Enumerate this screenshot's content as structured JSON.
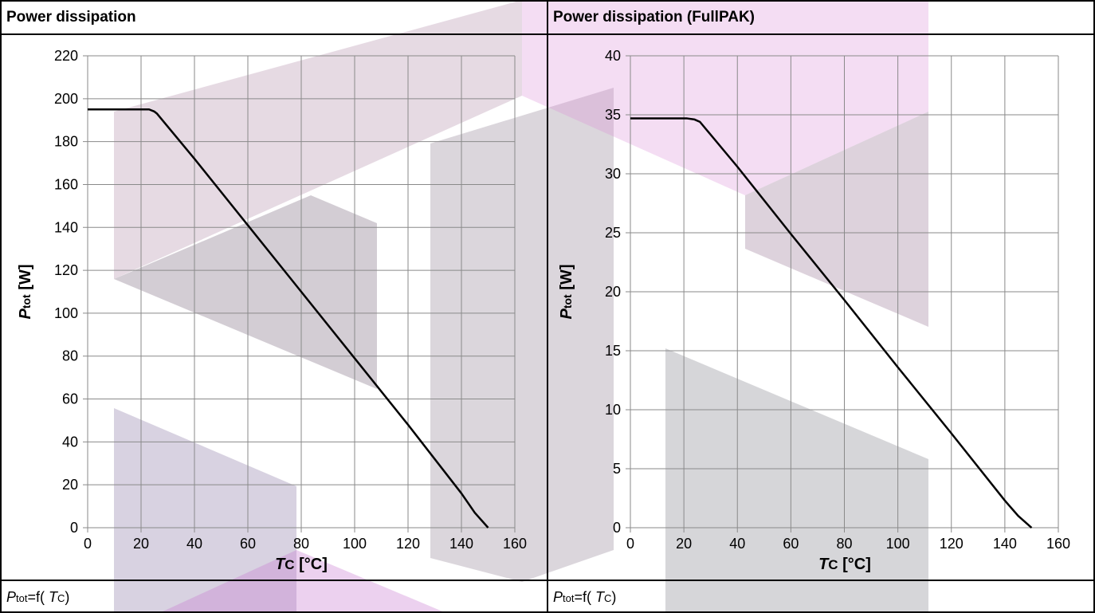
{
  "panels": [
    {
      "title": "Power dissipation",
      "caption": {
        "sym": "P",
        "sub": "tot",
        "rest": "=f( ",
        "arg": "T",
        "argsub": "C",
        "close": ")"
      }
    },
    {
      "title": "Power dissipation (FullPAK)",
      "caption": {
        "sym": "P",
        "sub": "tot",
        "rest": "=f( ",
        "arg": "T",
        "argsub": "C",
        "close": ")"
      }
    }
  ],
  "chart_data": [
    {
      "type": "line",
      "title": "Power dissipation",
      "xlabel": {
        "sym": "T",
        "sub": "C",
        "unit": " [°C]"
      },
      "ylabel": {
        "sym": "P",
        "sub": "tot",
        "unit": " [W]"
      },
      "xlim": [
        0,
        160
      ],
      "ylim": [
        0,
        220
      ],
      "xticks": [
        0,
        20,
        40,
        60,
        80,
        100,
        120,
        140,
        160
      ],
      "yticks": [
        0,
        20,
        40,
        60,
        80,
        100,
        120,
        140,
        160,
        180,
        200,
        220
      ],
      "grid": true,
      "series": [
        {
          "color": "#000000",
          "x": [
            0,
            21,
            23,
            25,
            26,
            40,
            60,
            80,
            100,
            120,
            140,
            145,
            150
          ],
          "y": [
            195,
            195,
            195,
            194,
            193,
            172,
            141,
            110,
            79,
            48,
            16,
            7,
            0
          ]
        }
      ]
    },
    {
      "type": "line",
      "title": "Power dissipation (FullPAK)",
      "xlabel": {
        "sym": "T",
        "sub": "C",
        "unit": " [°C]"
      },
      "ylabel": {
        "sym": "P",
        "sub": "tot",
        "unit": " [W]"
      },
      "xlim": [
        0,
        160
      ],
      "ylim": [
        0,
        40
      ],
      "xticks": [
        0,
        20,
        40,
        60,
        80,
        100,
        120,
        140,
        160
      ],
      "yticks": [
        0,
        5,
        10,
        15,
        20,
        25,
        30,
        35,
        40
      ],
      "grid": true,
      "series": [
        {
          "color": "#000000",
          "x": [
            0,
            21,
            24,
            26,
            40,
            60,
            80,
            100,
            120,
            140,
            145,
            150
          ],
          "y": [
            34.7,
            34.7,
            34.6,
            34.4,
            30.6,
            24.9,
            19.3,
            13.6,
            8.0,
            2.3,
            1.0,
            0
          ]
        }
      ]
    }
  ]
}
